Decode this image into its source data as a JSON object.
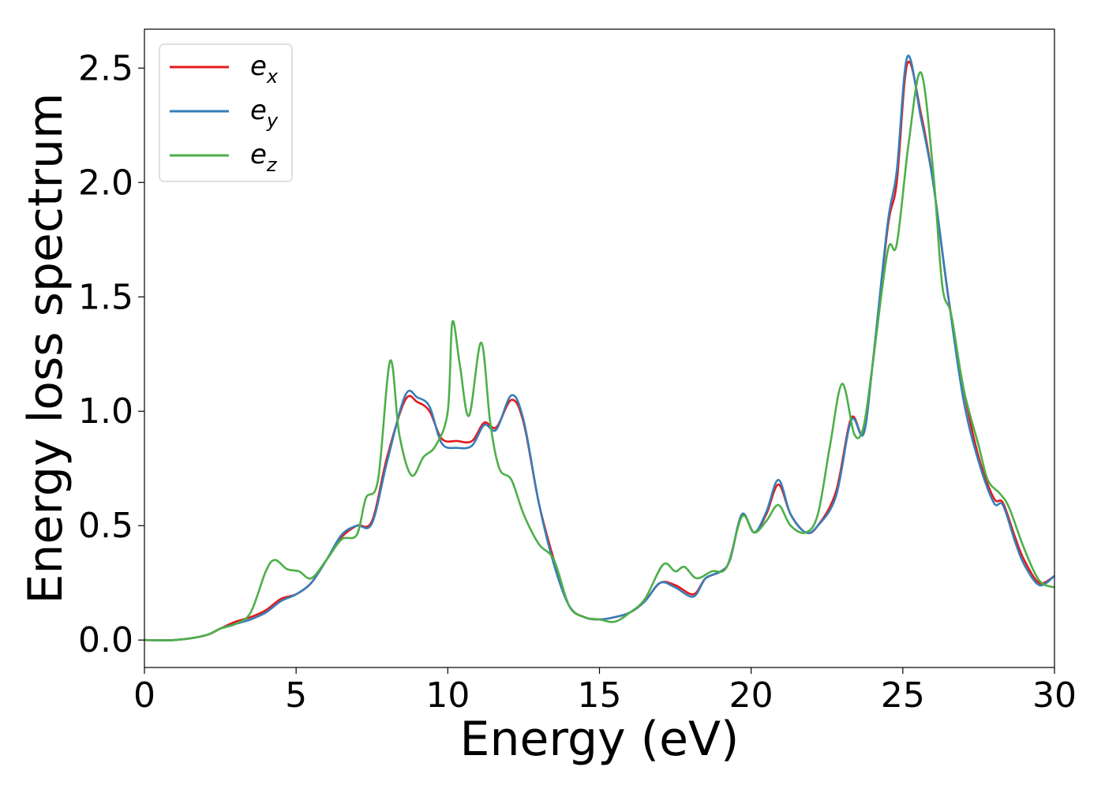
{
  "chart_data": {
    "type": "line",
    "xlabel": "Energy (eV)",
    "ylabel": "Energy loss spectrum",
    "xlim": [
      0,
      30
    ],
    "ylim": [
      -0.12,
      2.67
    ],
    "xticks": [
      0,
      5,
      10,
      15,
      20,
      25,
      30
    ],
    "xtick_labels": [
      "0",
      "5",
      "10",
      "15",
      "20",
      "25",
      "30"
    ],
    "yticks": [
      0.0,
      0.5,
      1.0,
      1.5,
      2.0,
      2.5
    ],
    "ytick_labels": [
      "0.0",
      "0.5",
      "1.0",
      "1.5",
      "2.0",
      "2.5"
    ],
    "grid": false,
    "legend_position": "top-left",
    "series": [
      {
        "name": "e_x",
        "legend_base": "e",
        "legend_sub": "x",
        "color": "#e41a1c",
        "points": [
          [
            0,
            0.0
          ],
          [
            1,
            0.0
          ],
          [
            2,
            0.02
          ],
          [
            2.5,
            0.05
          ],
          [
            3,
            0.08
          ],
          [
            3.5,
            0.1
          ],
          [
            4,
            0.13
          ],
          [
            4.5,
            0.18
          ],
          [
            5,
            0.2
          ],
          [
            5.5,
            0.25
          ],
          [
            6,
            0.35
          ],
          [
            6.5,
            0.45
          ],
          [
            7,
            0.5
          ],
          [
            7.5,
            0.52
          ],
          [
            8,
            0.8
          ],
          [
            8.6,
            1.05
          ],
          [
            9,
            1.04
          ],
          [
            9.4,
            1.0
          ],
          [
            9.8,
            0.88
          ],
          [
            10.3,
            0.87
          ],
          [
            10.8,
            0.87
          ],
          [
            11.2,
            0.95
          ],
          [
            11.6,
            0.93
          ],
          [
            12.1,
            1.05
          ],
          [
            12.5,
            0.95
          ],
          [
            13,
            0.6
          ],
          [
            13.5,
            0.35
          ],
          [
            14,
            0.15
          ],
          [
            14.5,
            0.1
          ],
          [
            15,
            0.09
          ],
          [
            15.5,
            0.1
          ],
          [
            16,
            0.12
          ],
          [
            16.5,
            0.17
          ],
          [
            17,
            0.25
          ],
          [
            17.5,
            0.24
          ],
          [
            18.1,
            0.2
          ],
          [
            18.5,
            0.27
          ],
          [
            19,
            0.3
          ],
          [
            19.3,
            0.35
          ],
          [
            19.7,
            0.55
          ],
          [
            20.1,
            0.47
          ],
          [
            20.5,
            0.55
          ],
          [
            20.9,
            0.68
          ],
          [
            21.3,
            0.55
          ],
          [
            21.8,
            0.47
          ],
          [
            22.2,
            0.5
          ],
          [
            22.8,
            0.65
          ],
          [
            23.3,
            0.97
          ],
          [
            23.7,
            0.9
          ],
          [
            24,
            1.2
          ],
          [
            24.5,
            1.8
          ],
          [
            24.8,
            2.0
          ],
          [
            25.15,
            2.52
          ],
          [
            25.6,
            2.3
          ],
          [
            26,
            2.0
          ],
          [
            26.5,
            1.5
          ],
          [
            27,
            1.1
          ],
          [
            27.5,
            0.8
          ],
          [
            28,
            0.62
          ],
          [
            28.3,
            0.6
          ],
          [
            28.7,
            0.45
          ],
          [
            29,
            0.35
          ],
          [
            29.5,
            0.25
          ],
          [
            30,
            0.28
          ]
        ]
      },
      {
        "name": "e_y",
        "legend_base": "e",
        "legend_sub": "y",
        "color": "#377eb8",
        "points": [
          [
            0,
            0.0
          ],
          [
            1,
            0.0
          ],
          [
            2,
            0.02
          ],
          [
            2.5,
            0.05
          ],
          [
            3,
            0.07
          ],
          [
            3.5,
            0.09
          ],
          [
            4,
            0.12
          ],
          [
            4.5,
            0.17
          ],
          [
            5,
            0.2
          ],
          [
            5.5,
            0.25
          ],
          [
            6,
            0.35
          ],
          [
            6.5,
            0.46
          ],
          [
            7,
            0.5
          ],
          [
            7.5,
            0.51
          ],
          [
            8,
            0.78
          ],
          [
            8.6,
            1.07
          ],
          [
            9,
            1.06
          ],
          [
            9.4,
            1.02
          ],
          [
            9.8,
            0.86
          ],
          [
            10.3,
            0.84
          ],
          [
            10.8,
            0.85
          ],
          [
            11.2,
            0.94
          ],
          [
            11.6,
            0.92
          ],
          [
            12.1,
            1.07
          ],
          [
            12.5,
            0.96
          ],
          [
            13,
            0.6
          ],
          [
            13.5,
            0.33
          ],
          [
            14,
            0.15
          ],
          [
            14.5,
            0.1
          ],
          [
            15,
            0.09
          ],
          [
            15.5,
            0.1
          ],
          [
            16,
            0.12
          ],
          [
            16.5,
            0.17
          ],
          [
            17,
            0.25
          ],
          [
            17.5,
            0.23
          ],
          [
            18.1,
            0.19
          ],
          [
            18.5,
            0.27
          ],
          [
            19,
            0.3
          ],
          [
            19.3,
            0.35
          ],
          [
            19.7,
            0.55
          ],
          [
            20.1,
            0.47
          ],
          [
            20.5,
            0.56
          ],
          [
            20.9,
            0.7
          ],
          [
            21.3,
            0.55
          ],
          [
            21.8,
            0.47
          ],
          [
            22.2,
            0.5
          ],
          [
            22.8,
            0.63
          ],
          [
            23.3,
            0.96
          ],
          [
            23.7,
            0.9
          ],
          [
            24,
            1.2
          ],
          [
            24.5,
            1.82
          ],
          [
            24.8,
            2.05
          ],
          [
            25.15,
            2.55
          ],
          [
            25.6,
            2.28
          ],
          [
            26,
            2.0
          ],
          [
            26.5,
            1.5
          ],
          [
            27,
            1.05
          ],
          [
            27.5,
            0.78
          ],
          [
            28,
            0.6
          ],
          [
            28.3,
            0.59
          ],
          [
            28.7,
            0.43
          ],
          [
            29,
            0.33
          ],
          [
            29.5,
            0.24
          ],
          [
            30,
            0.28
          ]
        ]
      },
      {
        "name": "e_z",
        "legend_base": "e",
        "legend_sub": "z",
        "color": "#4daf4a",
        "points": [
          [
            0,
            0.0
          ],
          [
            1,
            0.0
          ],
          [
            2,
            0.02
          ],
          [
            2.5,
            0.05
          ],
          [
            3,
            0.07
          ],
          [
            3.5,
            0.12
          ],
          [
            4,
            0.3
          ],
          [
            4.3,
            0.35
          ],
          [
            4.7,
            0.31
          ],
          [
            5.1,
            0.3
          ],
          [
            5.5,
            0.27
          ],
          [
            6,
            0.35
          ],
          [
            6.5,
            0.44
          ],
          [
            7,
            0.46
          ],
          [
            7.3,
            0.62
          ],
          [
            7.7,
            0.7
          ],
          [
            8.1,
            1.22
          ],
          [
            8.4,
            0.9
          ],
          [
            8.8,
            0.72
          ],
          [
            9.2,
            0.8
          ],
          [
            9.6,
            0.85
          ],
          [
            10,
            1.0
          ],
          [
            10.15,
            1.39
          ],
          [
            10.4,
            1.2
          ],
          [
            10.7,
            0.98
          ],
          [
            11.1,
            1.3
          ],
          [
            11.4,
            0.95
          ],
          [
            11.7,
            0.75
          ],
          [
            12.1,
            0.7
          ],
          [
            12.5,
            0.55
          ],
          [
            13,
            0.42
          ],
          [
            13.5,
            0.35
          ],
          [
            14,
            0.15
          ],
          [
            14.5,
            0.1
          ],
          [
            15,
            0.09
          ],
          [
            15.5,
            0.08
          ],
          [
            16,
            0.12
          ],
          [
            16.5,
            0.18
          ],
          [
            17.1,
            0.33
          ],
          [
            17.5,
            0.3
          ],
          [
            17.8,
            0.32
          ],
          [
            18.2,
            0.27
          ],
          [
            18.7,
            0.3
          ],
          [
            19.2,
            0.32
          ],
          [
            19.7,
            0.54
          ],
          [
            20.1,
            0.47
          ],
          [
            20.5,
            0.52
          ],
          [
            20.9,
            0.59
          ],
          [
            21.3,
            0.5
          ],
          [
            21.8,
            0.47
          ],
          [
            22.2,
            0.55
          ],
          [
            22.6,
            0.85
          ],
          [
            23,
            1.12
          ],
          [
            23.4,
            0.9
          ],
          [
            23.7,
            0.93
          ],
          [
            24,
            1.2
          ],
          [
            24.5,
            1.7
          ],
          [
            24.8,
            1.73
          ],
          [
            25.2,
            2.18
          ],
          [
            25.6,
            2.48
          ],
          [
            26,
            2.05
          ],
          [
            26.3,
            1.55
          ],
          [
            26.6,
            1.42
          ],
          [
            27,
            1.1
          ],
          [
            27.5,
            0.85
          ],
          [
            27.8,
            0.7
          ],
          [
            28.2,
            0.64
          ],
          [
            28.5,
            0.58
          ],
          [
            29,
            0.4
          ],
          [
            29.5,
            0.26
          ],
          [
            30,
            0.23
          ]
        ]
      }
    ]
  }
}
